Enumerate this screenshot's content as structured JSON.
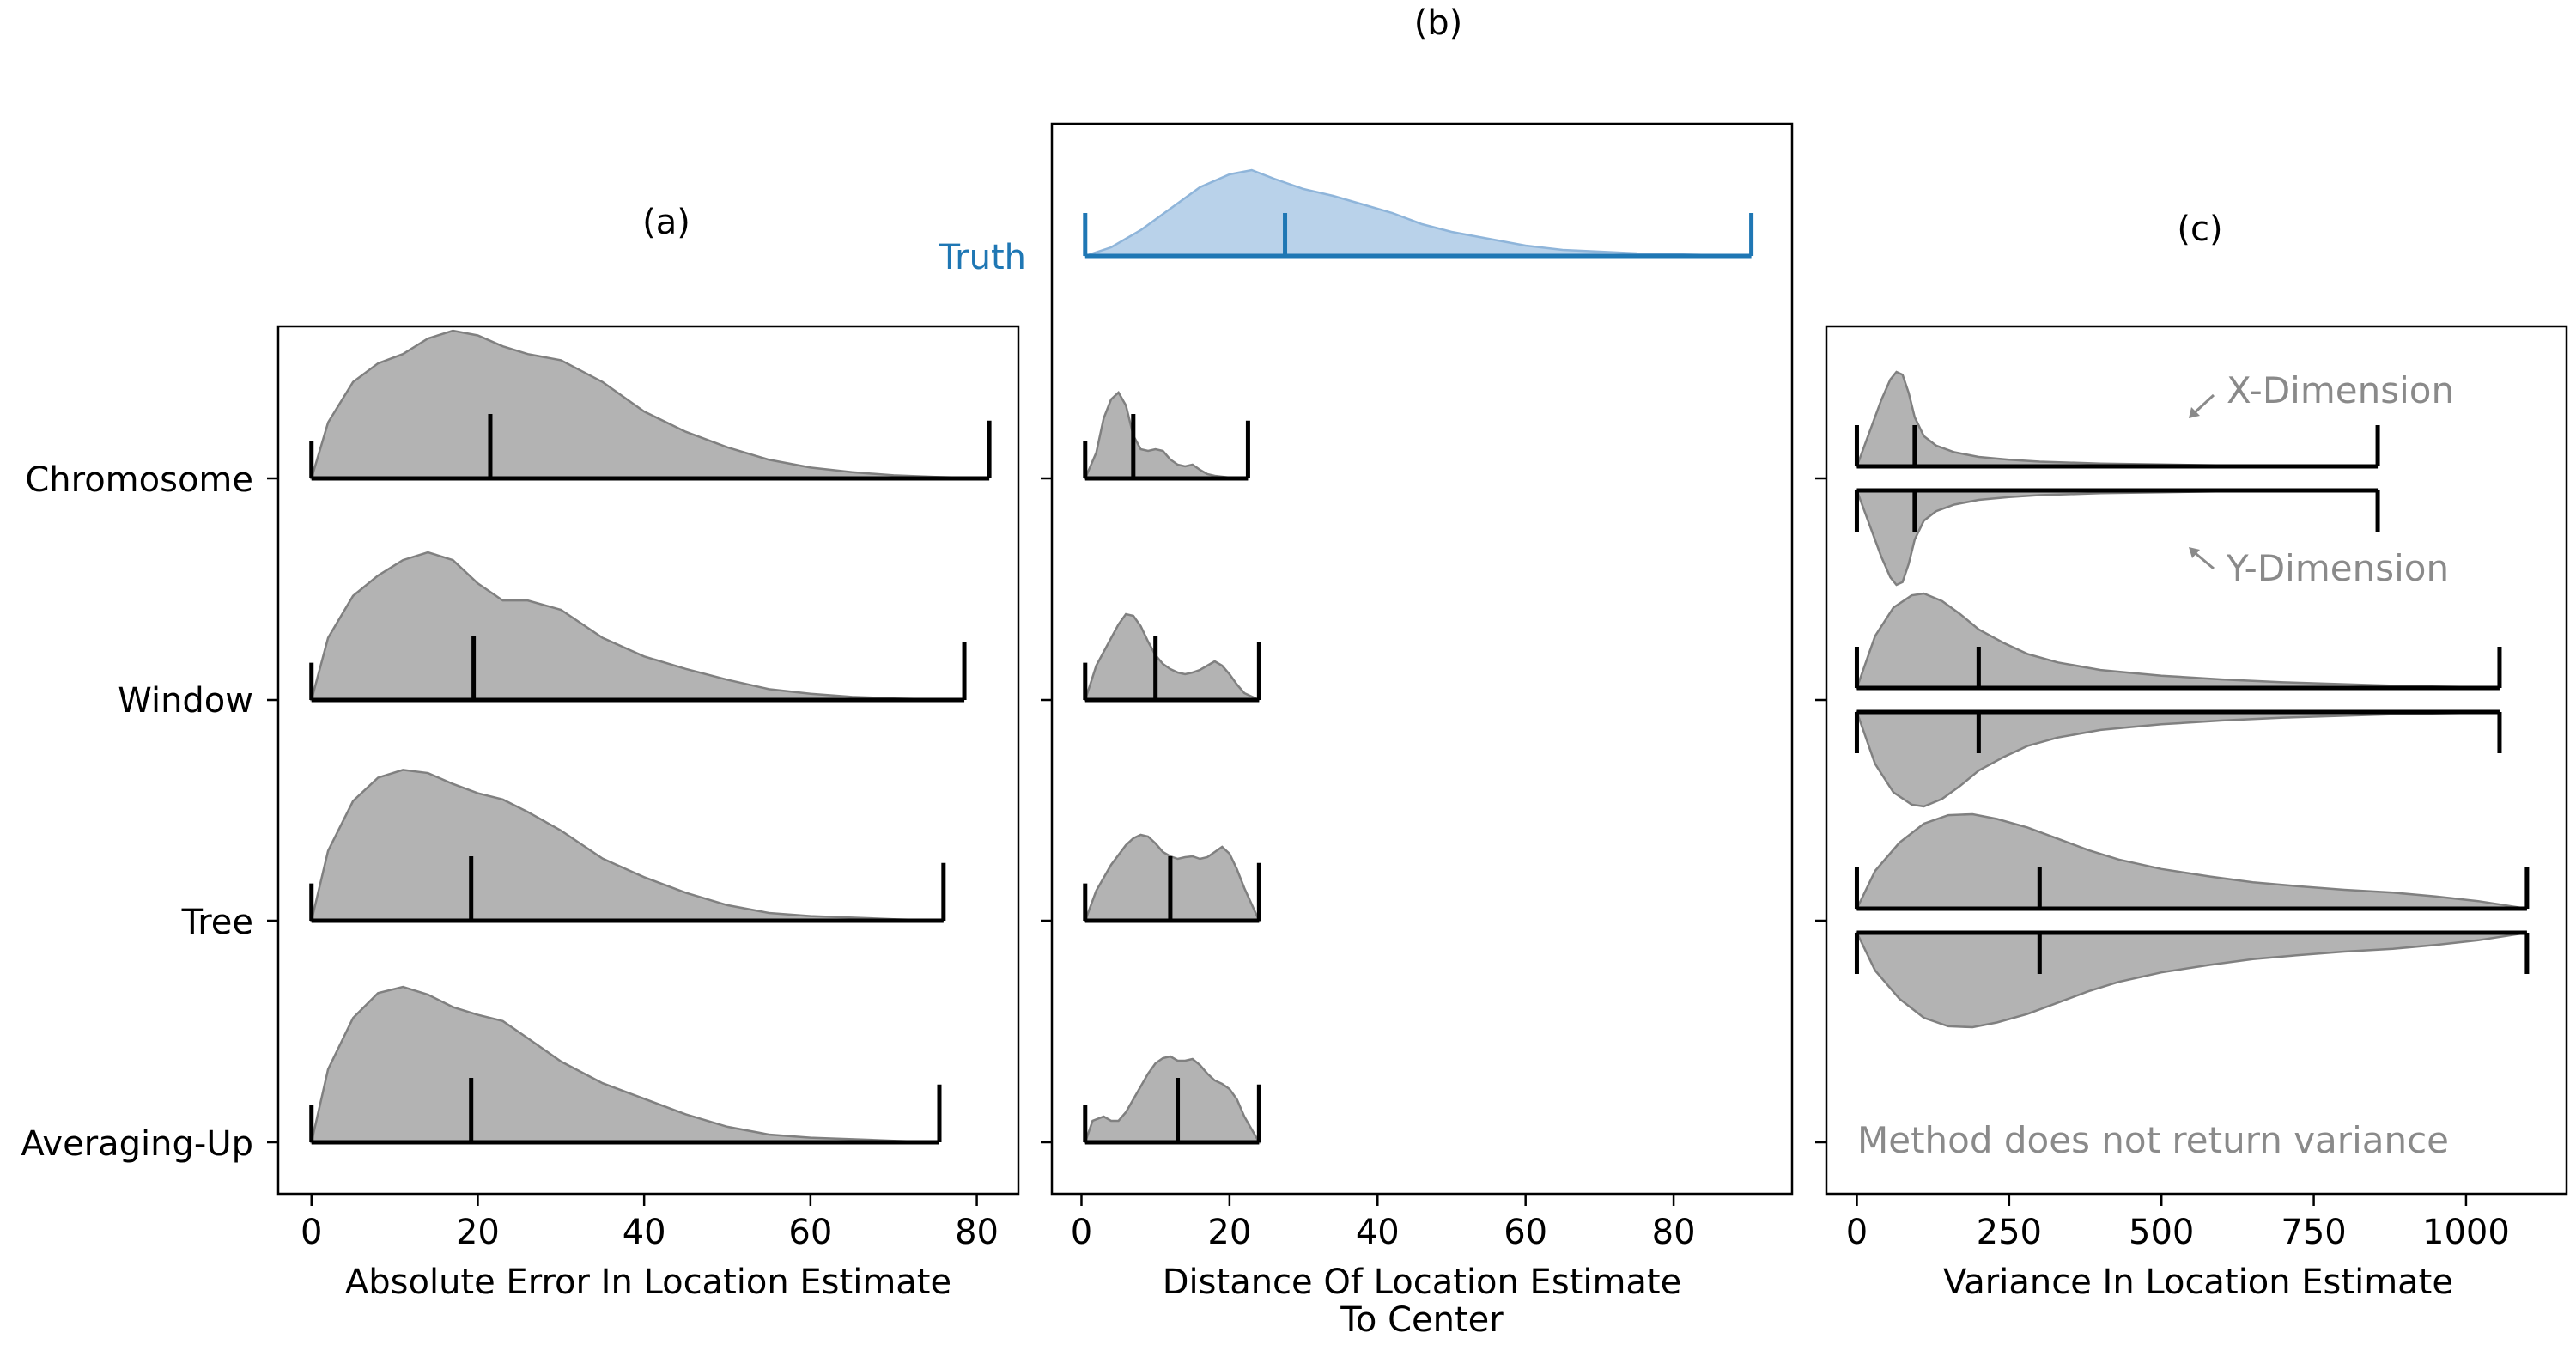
{
  "chart_data": [
    {
      "type": "violin",
      "panel_label": "(a)",
      "xlabel": "Absolute Error In Location Estimate",
      "xlim": [
        -4,
        85
      ],
      "xticks": [
        0,
        20,
        40,
        60,
        80
      ],
      "categories": [
        "Chromosome",
        "Window",
        "Tree",
        "Averaging-Up"
      ],
      "series": [
        {
          "name": "Chromosome",
          "min": 0,
          "median": 21.5,
          "max": 81.5,
          "density_x": [
            0,
            2,
            5,
            8,
            11,
            14,
            17,
            20,
            23,
            26,
            30,
            35,
            40,
            45,
            50,
            55,
            60,
            65,
            70,
            75,
            81.5
          ],
          "density": [
            0.0,
            0.36,
            0.62,
            0.74,
            0.8,
            0.9,
            0.95,
            0.92,
            0.85,
            0.8,
            0.76,
            0.62,
            0.43,
            0.3,
            0.2,
            0.12,
            0.07,
            0.04,
            0.02,
            0.01,
            0.0
          ]
        },
        {
          "name": "Window",
          "min": 0,
          "median": 19.5,
          "max": 78.5,
          "density_x": [
            0,
            2,
            5,
            8,
            11,
            14,
            17,
            20,
            23,
            26,
            30,
            35,
            40,
            45,
            50,
            55,
            60,
            65,
            70,
            78.5
          ],
          "density": [
            0.0,
            0.4,
            0.67,
            0.8,
            0.9,
            0.95,
            0.9,
            0.75,
            0.64,
            0.64,
            0.58,
            0.4,
            0.28,
            0.2,
            0.13,
            0.07,
            0.04,
            0.02,
            0.01,
            0.0
          ]
        },
        {
          "name": "Tree",
          "min": 0,
          "median": 19.2,
          "max": 76,
          "density_x": [
            0,
            2,
            5,
            8,
            11,
            14,
            17,
            20,
            23,
            26,
            30,
            35,
            40,
            45,
            50,
            55,
            60,
            65,
            70,
            76
          ],
          "density": [
            0.0,
            0.45,
            0.77,
            0.92,
            0.97,
            0.95,
            0.88,
            0.82,
            0.78,
            0.7,
            0.58,
            0.4,
            0.28,
            0.18,
            0.1,
            0.05,
            0.03,
            0.02,
            0.01,
            0.0
          ]
        },
        {
          "name": "Averaging-Up",
          "min": 0,
          "median": 19.2,
          "max": 75.5,
          "density_x": [
            0,
            2,
            5,
            8,
            11,
            14,
            17,
            20,
            23,
            26,
            30,
            35,
            40,
            45,
            50,
            55,
            60,
            65,
            70,
            75.5
          ],
          "density": [
            0.0,
            0.47,
            0.8,
            0.96,
            1.0,
            0.95,
            0.87,
            0.82,
            0.78,
            0.67,
            0.52,
            0.38,
            0.28,
            0.18,
            0.1,
            0.05,
            0.03,
            0.02,
            0.01,
            0.0
          ]
        }
      ]
    },
    {
      "type": "violin",
      "panel_label": "(b)",
      "xlabel": "Distance Of Location Estimate",
      "xlabel_line2": "To Center",
      "xlim": [
        -4,
        96
      ],
      "xticks": [
        0,
        20,
        40,
        60,
        80
      ],
      "truth": {
        "label": "Truth",
        "color": "#1f77b4",
        "fill": "#b9d2ea",
        "min": 0.5,
        "median": 27.5,
        "max": 90.5,
        "density_x": [
          0.5,
          4,
          8,
          12,
          16,
          20,
          23,
          26,
          30,
          34,
          38,
          42,
          46,
          50,
          55,
          60,
          65,
          70,
          75,
          80,
          85,
          90.5
        ],
        "density": [
          0.0,
          0.1,
          0.3,
          0.55,
          0.8,
          0.95,
          1.0,
          0.9,
          0.78,
          0.7,
          0.6,
          0.5,
          0.37,
          0.28,
          0.2,
          0.12,
          0.07,
          0.05,
          0.03,
          0.02,
          0.01,
          0.0
        ]
      },
      "series": [
        {
          "name": "Chromosome",
          "min": 0.5,
          "median": 7,
          "max": 22.5,
          "density_x": [
            0.5,
            2,
            3,
            4,
            5,
            6,
            7,
            8,
            9,
            10,
            11,
            12,
            13,
            14,
            15,
            16,
            17,
            18,
            20,
            22.5
          ],
          "density": [
            0.0,
            0.3,
            0.7,
            0.92,
            1.0,
            0.85,
            0.5,
            0.34,
            0.32,
            0.34,
            0.32,
            0.22,
            0.16,
            0.14,
            0.16,
            0.1,
            0.05,
            0.03,
            0.01,
            0.0
          ]
        },
        {
          "name": "Window",
          "min": 0.5,
          "median": 10,
          "max": 24,
          "density_x": [
            0.5,
            2,
            4,
            5,
            6,
            7,
            8,
            9,
            10,
            11,
            12,
            13,
            14,
            15,
            16,
            17,
            18,
            19,
            20,
            21,
            22,
            24
          ],
          "density": [
            0.0,
            0.4,
            0.72,
            0.88,
            1.0,
            0.98,
            0.86,
            0.68,
            0.52,
            0.42,
            0.36,
            0.32,
            0.3,
            0.32,
            0.35,
            0.4,
            0.45,
            0.4,
            0.3,
            0.18,
            0.08,
            0.0
          ]
        },
        {
          "name": "Tree",
          "min": 0.5,
          "median": 12,
          "max": 24,
          "density_x": [
            0.5,
            2,
            4,
            6,
            7,
            8,
            9,
            10,
            11,
            12,
            13,
            14,
            15,
            16,
            17,
            18,
            19,
            20,
            21,
            22,
            24
          ],
          "density": [
            0.0,
            0.35,
            0.65,
            0.88,
            0.96,
            1.0,
            0.98,
            0.9,
            0.8,
            0.75,
            0.72,
            0.74,
            0.75,
            0.72,
            0.74,
            0.8,
            0.86,
            0.78,
            0.6,
            0.38,
            0.0
          ]
        },
        {
          "name": "Averaging-Up",
          "min": 0.5,
          "median": 13,
          "max": 24,
          "density_x": [
            0.5,
            1.5,
            3,
            4,
            5,
            6,
            7,
            8,
            9,
            10,
            11,
            12,
            13,
            14,
            15,
            16,
            17,
            18,
            19,
            20,
            21,
            22,
            24
          ],
          "density": [
            0.0,
            0.25,
            0.3,
            0.25,
            0.25,
            0.35,
            0.5,
            0.65,
            0.8,
            0.92,
            0.98,
            1.0,
            0.95,
            0.95,
            0.97,
            0.9,
            0.8,
            0.72,
            0.68,
            0.62,
            0.5,
            0.3,
            0.0
          ]
        }
      ]
    },
    {
      "type": "violin",
      "panel_label": "(c)",
      "xlabel": "Variance In Location Estimate",
      "xlim": [
        -50,
        1165
      ],
      "xticks": [
        0,
        250,
        500,
        750,
        1000
      ],
      "annotations": {
        "x_dim": "X-Dimension",
        "y_dim": "Y-Dimension",
        "no_variance": "Method does not return variance"
      },
      "categories": [
        "Chromosome",
        "Window",
        "Tree",
        "Averaging-Up"
      ],
      "series": [
        {
          "name": "Chromosome",
          "min": 0,
          "median": 95,
          "max": 855,
          "density_x": [
            0,
            20,
            40,
            55,
            65,
            75,
            85,
            95,
            110,
            130,
            160,
            200,
            250,
            300,
            400,
            500,
            600,
            700,
            855
          ],
          "density": [
            0.0,
            0.35,
            0.7,
            0.92,
            1.0,
            0.97,
            0.78,
            0.52,
            0.32,
            0.22,
            0.15,
            0.1,
            0.07,
            0.05,
            0.03,
            0.02,
            0.01,
            0.005,
            0.0
          ]
        },
        {
          "name": "Window",
          "min": 0,
          "median": 200,
          "max": 1055,
          "density_x": [
            0,
            30,
            60,
            90,
            110,
            140,
            170,
            200,
            240,
            280,
            330,
            400,
            500,
            600,
            700,
            800,
            900,
            1000,
            1055
          ],
          "density": [
            0.0,
            0.55,
            0.85,
            0.98,
            1.0,
            0.92,
            0.78,
            0.62,
            0.48,
            0.36,
            0.27,
            0.19,
            0.13,
            0.09,
            0.06,
            0.04,
            0.02,
            0.01,
            0.0
          ]
        },
        {
          "name": "Tree",
          "min": 0,
          "median": 300,
          "max": 1100,
          "density_x": [
            0,
            30,
            70,
            110,
            150,
            190,
            230,
            280,
            330,
            380,
            430,
            500,
            580,
            650,
            720,
            800,
            880,
            950,
            1020,
            1100
          ],
          "density": [
            0.0,
            0.4,
            0.7,
            0.9,
            0.99,
            1.0,
            0.95,
            0.86,
            0.74,
            0.62,
            0.52,
            0.42,
            0.34,
            0.28,
            0.24,
            0.2,
            0.17,
            0.13,
            0.08,
            0.0
          ]
        },
        {
          "name": "Averaging-Up",
          "missing": true
        }
      ]
    }
  ]
}
